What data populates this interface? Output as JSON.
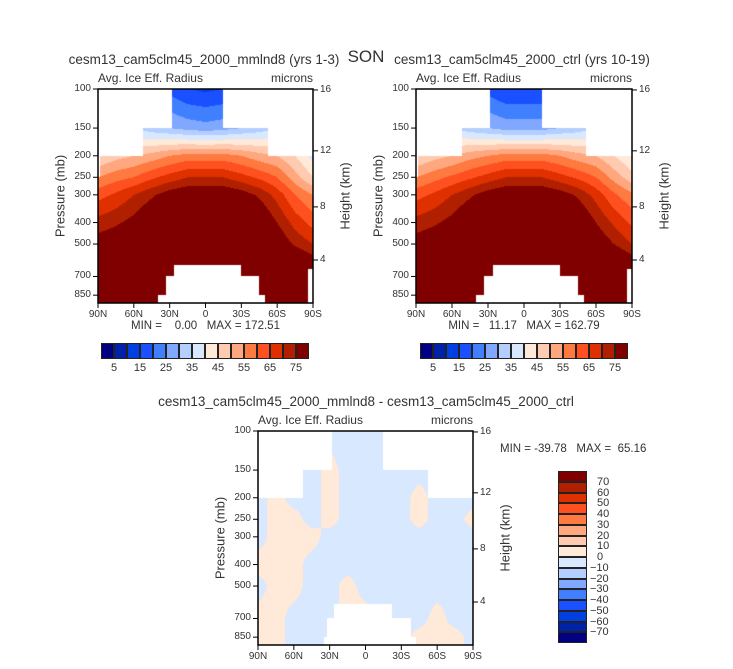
{
  "season": "SON",
  "chart_data": [
    {
      "type": "heatmap",
      "title": "cesm13_cam5clm45_2000_mmlnd8 (yrs 1-3)",
      "left_string": "Avg. Ice Eff. Radius",
      "right_string": "microns",
      "xlabel": "",
      "ylabel": "Pressure (mb)",
      "ylabel_right": "Height (km)",
      "x_ticks": [
        "90N",
        "60N",
        "30N",
        "0",
        "30S",
        "60S",
        "90S"
      ],
      "y_ticks": [
        100,
        150,
        200,
        250,
        300,
        400,
        500,
        700,
        850
      ],
      "y_scale": "log",
      "y_right_ticks": [
        16,
        12,
        8,
        4
      ],
      "min_max_text": "MIN =    0.00   MAX = 172.51",
      "lat": [
        90,
        75,
        60,
        45,
        30,
        15,
        0,
        -15,
        -30,
        -45,
        -60,
        -75,
        -90
      ],
      "pressure": [
        100,
        150,
        200,
        250,
        300,
        400,
        500,
        700,
        850
      ],
      "values": [
        [
          30,
          28,
          25,
          20,
          18,
          15,
          14,
          15,
          17,
          20,
          25,
          28,
          30
        ],
        [
          40,
          38,
          35,
          32,
          30,
          28,
          27,
          28,
          30,
          32,
          35,
          38,
          40
        ],
        [
          45,
          48,
          50,
          52,
          55,
          57,
          57,
          57,
          55,
          52,
          50,
          45,
          38
        ],
        [
          55,
          58,
          60,
          64,
          67,
          70,
          70,
          70,
          67,
          64,
          60,
          52,
          45
        ],
        [
          63,
          66,
          70,
          74,
          78,
          80,
          80,
          80,
          78,
          74,
          68,
          60,
          55
        ],
        [
          72,
          74,
          77,
          82,
          90,
          95,
          95,
          95,
          90,
          82,
          75,
          68,
          63
        ],
        [
          78,
          80,
          85,
          90,
          100,
          110,
          110,
          110,
          100,
          90,
          80,
          74,
          70
        ],
        [
          90,
          95,
          100,
          110,
          120,
          130,
          130,
          130,
          120,
          110,
          95,
          90,
          85
        ],
        [
          100,
          105,
          110,
          120,
          130,
          140,
          140,
          140,
          130,
          120,
          110,
          100,
          95
        ]
      ],
      "missing": [
        {
          "lat": [
            90,
            28
          ],
          "p": [
            100,
            150
          ]
        },
        {
          "lat": [
            -15,
            -90
          ],
          "p": [
            100,
            150
          ]
        },
        {
          "lat": [
            90,
            52
          ],
          "p": [
            150,
            200
          ]
        },
        {
          "lat": [
            -52,
            -90
          ],
          "p": [
            150,
            200
          ]
        },
        {
          "lat": [
            90,
            88
          ],
          "p": [
            200,
            250
          ]
        },
        {
          "lat": [
            26,
            -30
          ],
          "p": [
            620,
            700
          ]
        },
        {
          "lat": [
            33,
            -45
          ],
          "p": [
            700,
            850
          ]
        },
        {
          "lat": [
            40,
            -50
          ],
          "p": [
            850,
            1000
          ]
        },
        {
          "lat": [
            -86,
            -90
          ],
          "p": [
            650,
            1000
          ]
        }
      ],
      "colorbar": {
        "orientation": "horizontal",
        "levels": [
          5,
          10,
          15,
          20,
          25,
          30,
          35,
          40,
          45,
          50,
          55,
          60,
          65,
          70,
          75
        ],
        "labels": [
          "5",
          "15",
          "25",
          "35",
          "45",
          "55",
          "65",
          "75"
        ],
        "colors": [
          "#000080",
          "#0022a8",
          "#0040e0",
          "#1a50ff",
          "#4080ff",
          "#80a8ff",
          "#b4cfff",
          "#d8e8ff",
          "#ffe9d9",
          "#ffcbb0",
          "#ffa880",
          "#ff7a40",
          "#ff5020",
          "#e03000",
          "#b02000",
          "#800000"
        ]
      }
    },
    {
      "type": "heatmap",
      "title": "cesm13_cam5clm45_2000_ctrl (yrs 10-19)",
      "left_string": "Avg. Ice Eff. Radius",
      "right_string": "microns",
      "xlabel": "",
      "ylabel": "Pressure (mb)",
      "ylabel_right": "Height (km)",
      "x_ticks": [
        "90N",
        "60N",
        "30N",
        "0",
        "30S",
        "60S",
        "90S"
      ],
      "y_ticks": [
        100,
        150,
        200,
        250,
        300,
        400,
        500,
        700,
        850
      ],
      "y_scale": "log",
      "y_right_ticks": [
        16,
        12,
        8,
        4
      ],
      "min_max_text": "MIN =   11.17   MAX = 162.79",
      "lat": [
        90,
        75,
        60,
        45,
        30,
        15,
        0,
        -15,
        -30,
        -45,
        -60,
        -75,
        -90
      ],
      "pressure": [
        100,
        150,
        200,
        250,
        300,
        400,
        500,
        700,
        850
      ],
      "values": [
        [
          30,
          28,
          25,
          20,
          18,
          15,
          15,
          15,
          17,
          20,
          25,
          28,
          30
        ],
        [
          40,
          38,
          35,
          32,
          30,
          28,
          28,
          28,
          30,
          32,
          35,
          38,
          40
        ],
        [
          45,
          48,
          50,
          53,
          55,
          57,
          57,
          57,
          55,
          52,
          50,
          45,
          40
        ],
        [
          55,
          58,
          61,
          64,
          67,
          70,
          70,
          70,
          67,
          64,
          60,
          53,
          47
        ],
        [
          63,
          66,
          70,
          74,
          78,
          80,
          80,
          80,
          78,
          74,
          68,
          61,
          56
        ],
        [
          72,
          74,
          77,
          82,
          90,
          95,
          95,
          95,
          90,
          82,
          75,
          69,
          64
        ],
        [
          78,
          80,
          85,
          90,
          100,
          110,
          110,
          110,
          100,
          90,
          80,
          75,
          70
        ],
        [
          90,
          95,
          100,
          110,
          120,
          130,
          130,
          130,
          120,
          110,
          95,
          90,
          85
        ],
        [
          100,
          105,
          110,
          120,
          130,
          140,
          140,
          140,
          130,
          120,
          110,
          100,
          95
        ]
      ],
      "missing": [
        {
          "lat": [
            90,
            28
          ],
          "p": [
            100,
            150
          ]
        },
        {
          "lat": [
            -15,
            -90
          ],
          "p": [
            100,
            150
          ]
        },
        {
          "lat": [
            90,
            52
          ],
          "p": [
            150,
            200
          ]
        },
        {
          "lat": [
            -52,
            -90
          ],
          "p": [
            150,
            200
          ]
        },
        {
          "lat": [
            90,
            88
          ],
          "p": [
            200,
            250
          ]
        },
        {
          "lat": [
            26,
            -30
          ],
          "p": [
            620,
            700
          ]
        },
        {
          "lat": [
            33,
            -45
          ],
          "p": [
            700,
            850
          ]
        },
        {
          "lat": [
            40,
            -50
          ],
          "p": [
            850,
            1000
          ]
        },
        {
          "lat": [
            -86,
            -90
          ],
          "p": [
            650,
            1000
          ]
        }
      ],
      "colorbar": {
        "orientation": "horizontal",
        "levels": [
          5,
          10,
          15,
          20,
          25,
          30,
          35,
          40,
          45,
          50,
          55,
          60,
          65,
          70,
          75
        ],
        "labels": [
          "5",
          "15",
          "25",
          "35",
          "45",
          "55",
          "65",
          "75"
        ],
        "colors": [
          "#000080",
          "#0022a8",
          "#0040e0",
          "#1a50ff",
          "#4080ff",
          "#80a8ff",
          "#b4cfff",
          "#d8e8ff",
          "#ffe9d9",
          "#ffcbb0",
          "#ffa880",
          "#ff7a40",
          "#ff5020",
          "#e03000",
          "#b02000",
          "#800000"
        ]
      }
    },
    {
      "type": "heatmap",
      "title": "cesm13_cam5clm45_2000_mmlnd8 - cesm13_cam5clm45_2000_ctrl",
      "left_string": "Avg. Ice Eff. Radius",
      "right_string": "microns",
      "xlabel": "",
      "ylabel": "Pressure (mb)",
      "ylabel_right": "Height (km)",
      "x_ticks": [
        "90N",
        "60N",
        "30N",
        "0",
        "30S",
        "60S",
        "90S"
      ],
      "y_ticks": [
        100,
        150,
        200,
        250,
        300,
        400,
        500,
        700,
        850
      ],
      "y_scale": "log",
      "y_right_ticks": [
        16,
        12,
        8,
        4
      ],
      "min_max_text": "MIN = -39.78   MAX =  65.16",
      "lat": [
        90,
        75,
        60,
        45,
        30,
        15,
        0,
        -15,
        -30,
        -45,
        -60,
        -75,
        -90
      ],
      "pressure": [
        100,
        150,
        200,
        250,
        300,
        400,
        500,
        700,
        850
      ],
      "values": [
        [
          -5,
          -5,
          -5,
          -5,
          -5,
          -5,
          -5,
          -5,
          -5,
          -5,
          -5,
          -5,
          -5
        ],
        [
          -5,
          -5,
          -5,
          -5,
          5,
          -5,
          -5,
          -5,
          -5,
          -5,
          -5,
          -5,
          -5
        ],
        [
          -5,
          5,
          -5,
          -5,
          5,
          -5,
          -5,
          -5,
          -5,
          5,
          -5,
          -5,
          -5
        ],
        [
          -5,
          5,
          5,
          -5,
          5,
          -5,
          -5,
          -5,
          -5,
          5,
          -5,
          -5,
          5
        ],
        [
          -5,
          5,
          5,
          5,
          -5,
          -5,
          -5,
          -5,
          -5,
          -5,
          -5,
          -5,
          -5
        ],
        [
          5,
          5,
          5,
          -5,
          -5,
          -5,
          -5,
          -5,
          -5,
          -5,
          -5,
          -5,
          -5
        ],
        [
          -5,
          5,
          5,
          -5,
          -5,
          5,
          -5,
          -5,
          -5,
          -5,
          -5,
          -5,
          -5
        ],
        [
          5,
          5,
          -5,
          -5,
          -5,
          5,
          5,
          -5,
          -5,
          -5,
          5,
          -5,
          -5
        ],
        [
          5,
          5,
          -5,
          -5,
          -5,
          -5,
          -5,
          -5,
          -5,
          5,
          5,
          5,
          -5
        ]
      ],
      "missing": [
        {
          "lat": [
            90,
            28
          ],
          "p": [
            100,
            150
          ]
        },
        {
          "lat": [
            -15,
            -90
          ],
          "p": [
            100,
            150
          ]
        },
        {
          "lat": [
            90,
            52
          ],
          "p": [
            150,
            200
          ]
        },
        {
          "lat": [
            -52,
            -90
          ],
          "p": [
            150,
            200
          ]
        },
        {
          "lat": [
            26,
            -22
          ],
          "p": [
            600,
            700
          ]
        },
        {
          "lat": [
            32,
            -38
          ],
          "p": [
            700,
            850
          ]
        },
        {
          "lat": [
            35,
            -42
          ],
          "p": [
            850,
            1000
          ]
        }
      ],
      "colorbar": {
        "orientation": "vertical",
        "levels": [
          -70,
          -60,
          -50,
          -40,
          -30,
          -20,
          -10,
          0,
          10,
          20,
          30,
          40,
          50,
          60,
          70
        ],
        "labels": [
          "-70",
          "-60",
          "-50",
          "-40",
          "-30",
          "-20",
          "-10",
          "0",
          "10",
          "20",
          "30",
          "40",
          "50",
          "60",
          "70"
        ],
        "colors": [
          "#000080",
          "#0022a8",
          "#0040e0",
          "#1a50ff",
          "#4080ff",
          "#80a8ff",
          "#b4cfff",
          "#d8e8ff",
          "#ffe9d9",
          "#ffcbb0",
          "#ffa880",
          "#ff7a40",
          "#ff5020",
          "#e03000",
          "#b02000",
          "#800000"
        ]
      }
    }
  ]
}
